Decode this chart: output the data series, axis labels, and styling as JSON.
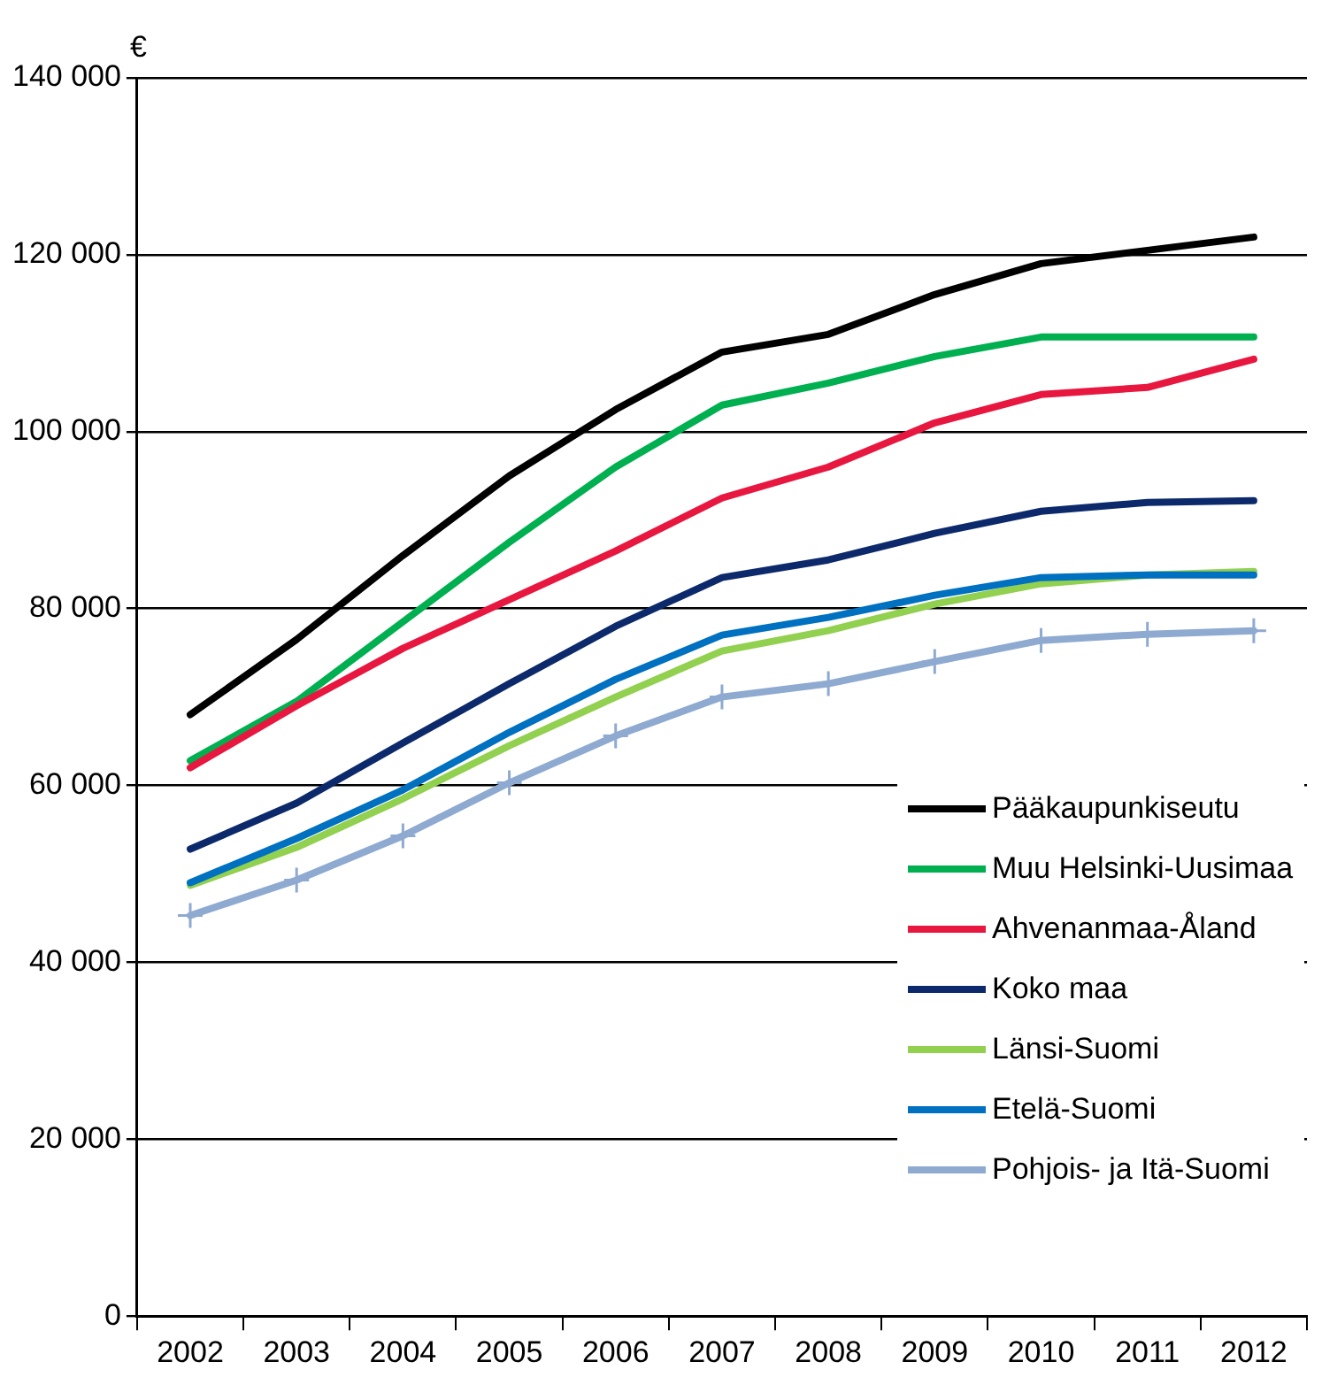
{
  "chart_data": {
    "type": "line",
    "ylabel": "€",
    "categories": [
      "2002",
      "2003",
      "2004",
      "2005",
      "2006",
      "2007",
      "2008",
      "2009",
      "2010",
      "2011",
      "2012"
    ],
    "ylim": [
      0,
      140000
    ],
    "yticks": [
      0,
      20000,
      40000,
      60000,
      80000,
      100000,
      120000,
      140000
    ],
    "grid": "y",
    "legend": "right",
    "marker": "none",
    "series": [
      {
        "name": "Pääkaupunkiseutu",
        "color": "#000000",
        "values": [
          68000,
          76500,
          86000,
          95000,
          102500,
          109000,
          111000,
          115500,
          119000,
          120500,
          122000
        ]
      },
      {
        "name": "Muu Helsinki-Uusimaa",
        "color": "#00b050",
        "values": [
          62800,
          69500,
          78500,
          87500,
          96000,
          103000,
          105500,
          108500,
          110700,
          110700,
          110700
        ]
      },
      {
        "name": "Ahvenanmaa-Åland",
        "color": "#e8173f",
        "values": [
          62000,
          69000,
          75500,
          81000,
          86500,
          92500,
          96000,
          101000,
          104200,
          105000,
          108200
        ]
      },
      {
        "name": "Koko maa",
        "color": "#0c2a6b",
        "values": [
          52800,
          58000,
          64800,
          71500,
          78000,
          83500,
          85500,
          88500,
          91000,
          92000,
          92200
        ]
      },
      {
        "name": "Länsi-Suomi",
        "color": "#92d050",
        "values": [
          48700,
          53000,
          58500,
          64500,
          70000,
          75200,
          77500,
          80500,
          82800,
          83800,
          84200
        ]
      },
      {
        "name": "Etelä-Suomi",
        "color": "#0070c0",
        "values": [
          49000,
          54000,
          59500,
          66000,
          72000,
          77000,
          79000,
          81500,
          83500,
          83800,
          83800
        ]
      },
      {
        "name": "Pohjois- ja Itä-Suomi",
        "color": "#8eaad0",
        "marker": "cross",
        "values": [
          45300,
          49300,
          54300,
          60300,
          65600,
          70000,
          71500,
          74000,
          76400,
          77100,
          77500
        ]
      }
    ]
  }
}
